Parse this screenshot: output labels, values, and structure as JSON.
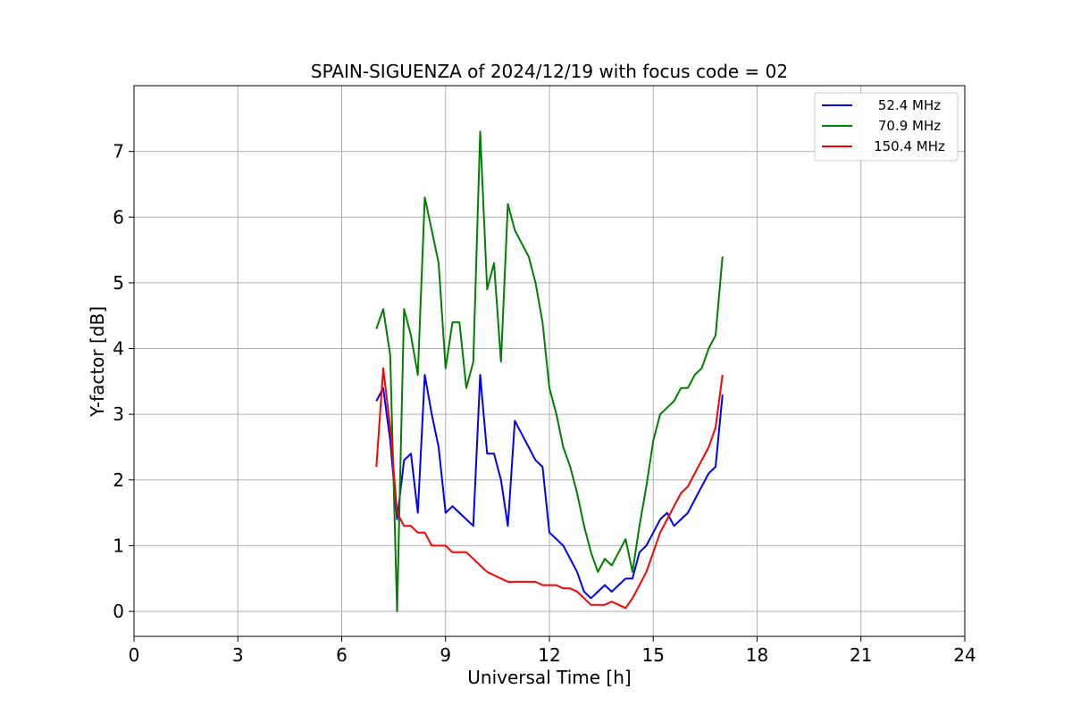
{
  "chart_data": {
    "type": "line",
    "title": "SPAIN-SIGUENZA of 2024/12/19 with focus code = 02",
    "xlabel": "Universal Time [h]",
    "ylabel": "Y-factor [dB]",
    "xlim": [
      0,
      24
    ],
    "ylim": [
      -0.38,
      8.0
    ],
    "xticks": [
      0,
      3,
      6,
      9,
      12,
      15,
      18,
      21,
      24
    ],
    "yticks": [
      0,
      1,
      2,
      3,
      4,
      5,
      6,
      7
    ],
    "grid": true,
    "legend_position": "top-right",
    "series": [
      {
        "name": "52.4 MHz",
        "color": "#0000ff",
        "x": [
          7.0,
          7.2,
          7.4,
          7.6,
          7.8,
          8.0,
          8.2,
          8.4,
          8.6,
          8.8,
          9.0,
          9.2,
          9.4,
          9.6,
          9.8,
          10.0,
          10.2,
          10.4,
          10.6,
          10.8,
          11.0,
          11.2,
          11.4,
          11.6,
          11.8,
          12.0,
          12.2,
          12.4,
          12.6,
          12.8,
          13.0,
          13.2,
          13.4,
          13.6,
          13.8,
          14.0,
          14.2,
          14.4,
          14.6,
          14.8,
          15.0,
          15.2,
          15.4,
          15.6,
          15.8,
          16.0,
          16.2,
          16.4,
          16.6,
          16.8,
          17.0
        ],
        "y": [
          3.2,
          3.4,
          2.6,
          1.4,
          2.3,
          2.4,
          1.5,
          3.6,
          3.0,
          2.5,
          1.5,
          1.6,
          1.5,
          1.4,
          1.3,
          3.6,
          2.4,
          2.4,
          2.0,
          1.3,
          2.9,
          2.7,
          2.5,
          2.3,
          2.2,
          1.2,
          1.1,
          1.0,
          0.8,
          0.6,
          0.3,
          0.2,
          0.3,
          0.4,
          0.3,
          0.4,
          0.5,
          0.5,
          0.9,
          1.0,
          1.2,
          1.4,
          1.5,
          1.3,
          1.4,
          1.5,
          1.7,
          1.9,
          2.1,
          2.2,
          3.3
        ]
      },
      {
        "name": "70.9 MHz",
        "color": "#008000",
        "x": [
          7.0,
          7.2,
          7.4,
          7.6,
          7.8,
          8.0,
          8.2,
          8.4,
          8.6,
          8.8,
          9.0,
          9.2,
          9.4,
          9.6,
          9.8,
          10.0,
          10.2,
          10.4,
          10.6,
          10.8,
          11.0,
          11.2,
          11.4,
          11.6,
          11.8,
          12.0,
          12.2,
          12.4,
          12.6,
          12.8,
          13.0,
          13.2,
          13.4,
          13.6,
          13.8,
          14.0,
          14.2,
          14.4,
          14.6,
          14.8,
          15.0,
          15.2,
          15.4,
          15.6,
          15.8,
          16.0,
          16.2,
          16.4,
          16.6,
          16.8,
          17.0
        ],
        "y": [
          4.3,
          4.6,
          3.9,
          0.0,
          4.6,
          4.2,
          3.6,
          6.3,
          5.8,
          5.3,
          3.7,
          4.4,
          4.4,
          3.4,
          3.8,
          7.3,
          4.9,
          5.3,
          3.8,
          6.2,
          5.8,
          5.6,
          5.4,
          5.0,
          4.4,
          3.4,
          3.0,
          2.5,
          2.2,
          1.8,
          1.3,
          0.9,
          0.6,
          0.8,
          0.7,
          0.9,
          1.1,
          0.6,
          1.3,
          1.9,
          2.6,
          3.0,
          3.1,
          3.2,
          3.4,
          3.4,
          3.6,
          3.7,
          4.0,
          4.2,
          5.4
        ]
      },
      {
        "name": "150.4 MHz",
        "color": "#ff0000",
        "x": [
          7.0,
          7.2,
          7.4,
          7.6,
          7.8,
          8.0,
          8.2,
          8.4,
          8.6,
          8.8,
          9.0,
          9.2,
          9.4,
          9.6,
          9.8,
          10.0,
          10.2,
          10.4,
          10.6,
          10.8,
          11.0,
          11.2,
          11.4,
          11.6,
          11.8,
          12.0,
          12.2,
          12.4,
          12.6,
          12.8,
          13.0,
          13.2,
          13.4,
          13.6,
          13.8,
          14.0,
          14.2,
          14.4,
          14.6,
          14.8,
          15.0,
          15.2,
          15.4,
          15.6,
          15.8,
          16.0,
          16.2,
          16.4,
          16.6,
          16.8,
          17.0
        ],
        "y": [
          2.2,
          3.7,
          2.8,
          1.5,
          1.3,
          1.3,
          1.2,
          1.2,
          1.0,
          1.0,
          1.0,
          0.9,
          0.9,
          0.9,
          0.8,
          0.7,
          0.6,
          0.55,
          0.5,
          0.45,
          0.45,
          0.45,
          0.45,
          0.45,
          0.4,
          0.4,
          0.4,
          0.35,
          0.35,
          0.3,
          0.2,
          0.1,
          0.1,
          0.1,
          0.15,
          0.1,
          0.05,
          0.2,
          0.4,
          0.6,
          0.9,
          1.2,
          1.4,
          1.6,
          1.8,
          1.9,
          2.1,
          2.3,
          2.5,
          2.8,
          3.6
        ]
      }
    ]
  }
}
